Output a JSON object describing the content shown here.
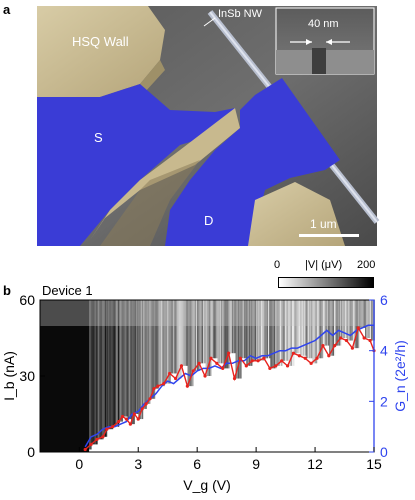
{
  "panel_a": {
    "label": "a",
    "hsq_wall_label": "HSQ Wall",
    "nanowire_label": "InSb NW",
    "source_label": "S",
    "drain_label": "D",
    "scalebar_label": "1 um",
    "inset_scale_label": "40 nm"
  },
  "panel_b": {
    "label": "b",
    "device_label": "Device 1",
    "colorbar": {
      "label": "|V| (μV)",
      "min_label": "0",
      "max_label": "200",
      "min": 0,
      "max": 200
    }
  },
  "colors": {
    "current_trace": "#e8231e",
    "conductance_trace": "#2f44ee",
    "electrode": "#3a3cd6",
    "hsq": "#cbbd93",
    "right_axis": "#2f44ee"
  },
  "chart_data": {
    "type": "line",
    "xlabel": "V_g (V)",
    "ylabel": "I_b (nA)",
    "y2label": "G_n (2e²/h)",
    "xlim": [
      -2,
      15
    ],
    "ylim": [
      0,
      60
    ],
    "y2lim": [
      0,
      6
    ],
    "x_ticks": [
      "0",
      "3",
      "6",
      "9",
      "12",
      "15"
    ],
    "x_tick_values": [
      0,
      3,
      6,
      9,
      12,
      15
    ],
    "y_ticks": [
      "0",
      "30",
      "60"
    ],
    "y_tick_values": [
      0,
      30,
      60
    ],
    "y2_ticks": [
      "0",
      "2",
      "4",
      "6"
    ],
    "y2_tick_values": [
      0,
      2,
      4,
      6
    ],
    "series": [
      {
        "axis": "left",
        "x": [
          0.3,
          0.6,
          0.9,
          1.2,
          1.4,
          1.7,
          2.0,
          2.2,
          2.4,
          2.6,
          2.8,
          3.0,
          3.2,
          3.4,
          3.6,
          3.8,
          4.0,
          4.3,
          4.6,
          4.9,
          5.2,
          5.5,
          5.8,
          6.1,
          6.4,
          6.7,
          7.0,
          7.3,
          7.6,
          7.9,
          8.2,
          8.5,
          8.8,
          9.1,
          9.4,
          9.7,
          10.0,
          10.3,
          10.6,
          10.9,
          11.2,
          11.5,
          11.8,
          12.1,
          12.4,
          12.7,
          13.0,
          13.3,
          13.6,
          13.9,
          14.2,
          14.5,
          14.8,
          15.0
        ],
        "y": [
          1,
          3,
          5,
          6,
          9,
          10,
          12,
          14,
          13,
          11,
          15,
          13,
          17,
          19,
          21,
          25,
          26,
          27,
          31,
          29,
          34,
          26,
          32,
          35,
          30,
          37,
          35,
          33,
          39,
          29,
          37,
          34,
          36,
          36,
          37,
          33,
          34,
          36,
          34,
          39,
          38,
          37,
          35,
          37,
          42,
          38,
          42,
          45,
          44,
          41,
          49,
          45,
          44,
          40
        ]
      },
      {
        "axis": "right",
        "x": [
          0.3,
          0.6,
          0.9,
          1.2,
          1.5,
          1.8,
          2.1,
          2.4,
          2.7,
          3.0,
          3.3,
          3.6,
          3.9,
          4.2,
          4.5,
          4.8,
          5.1,
          5.4,
          5.7,
          6.0,
          6.3,
          6.6,
          6.9,
          7.2,
          7.5,
          7.8,
          8.1,
          8.4,
          8.7,
          9.0,
          9.3,
          9.6,
          9.9,
          10.2,
          10.5,
          10.8,
          11.1,
          11.4,
          11.7,
          12.0,
          12.3,
          12.6,
          12.9,
          13.2,
          13.5,
          13.8,
          14.1,
          14.4,
          14.7,
          15.0
        ],
        "y": [
          0.2,
          0.6,
          0.7,
          0.9,
          1.0,
          1.0,
          1.1,
          1.2,
          1.5,
          1.6,
          1.9,
          2.1,
          2.3,
          2.6,
          2.8,
          2.7,
          2.9,
          3.1,
          3.0,
          3.2,
          3.3,
          3.3,
          3.4,
          3.3,
          3.5,
          3.5,
          3.6,
          3.6,
          3.8,
          3.7,
          3.8,
          3.8,
          3.9,
          4.0,
          4.0,
          4.1,
          4.1,
          4.2,
          4.3,
          4.4,
          4.6,
          4.8,
          4.6,
          4.8,
          4.7,
          4.6,
          4.8,
          4.9,
          5.0,
          5.0
        ]
      }
    ]
  }
}
